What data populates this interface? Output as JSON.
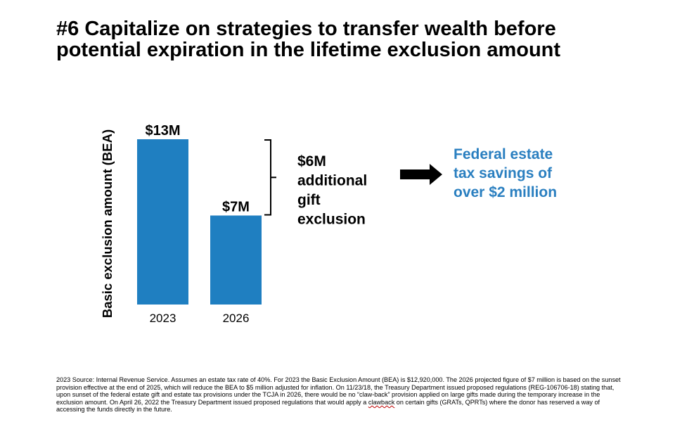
{
  "title": {
    "line1": "#6 Capitalize on strategies to transfer wealth before",
    "line2": "potential expiration in the lifetime exclusion amount"
  },
  "chart_data": {
    "type": "bar",
    "categories": [
      "2023",
      "2026"
    ],
    "values": [
      13,
      7
    ],
    "value_labels": [
      "$13M",
      "$7M"
    ],
    "ylabel": "Basic exclusion amount (BEA)",
    "xlabel": "",
    "title": "",
    "ylim": [
      0,
      14
    ],
    "grid": false,
    "bar_color": "#1f7fc1",
    "bracket_label": [
      "$6M",
      "additional",
      "gift",
      "exclusion"
    ]
  },
  "arrow_icon": "right-arrow",
  "callout": {
    "lines": [
      "Federal estate",
      "tax savings of",
      "over $2 million"
    ],
    "color": "#2a7fc0"
  },
  "footnote": {
    "before_clawback": "2023 Source: Internal Revenue Service. Assumes an estate tax rate of 40%. For 2023 the Basic Exclusion Amount (BEA) is $12,920,000. The 2026 projected figure of $7 million is based on the sunset provision effective at the end of 2025, which will reduce the BEA to $5 million adjusted for inflation. On 11/23/18, the Treasury Department issued proposed regulations (REG-106706-18) stating that, upon sunset of the federal estate gift and estate tax provisions under the TCJA in 2026, there would be no “claw-back” provision applied on large gifts made during the temporary increase in the exclusion amount. On April 26, 2022 the Treasury Department issued proposed regulations that would apply a ",
    "clawback_word": "clawback",
    "after_clawback": " on certain gifts (GRATs, QPRTs) where the donor has reserved a way of accessing the funds directly in the future."
  }
}
